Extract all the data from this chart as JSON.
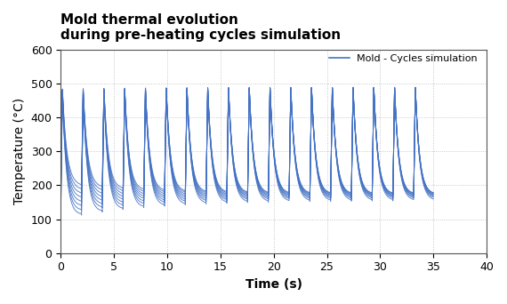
{
  "title_line1": "Mold thermal evolution",
  "title_line2": "during pre-heating cycles simulation",
  "xlabel": "Time (s)",
  "ylabel": "Temperature (°C)",
  "legend_label": "Mold - Cycles simulation",
  "xlim": [
    0,
    40
  ],
  "ylim": [
    0,
    600
  ],
  "xticks": [
    0,
    5,
    10,
    15,
    20,
    25,
    30,
    35,
    40
  ],
  "yticks": [
    0,
    100,
    200,
    300,
    400,
    500,
    600
  ],
  "line_color": "#4472C4",
  "background_color": "#ffffff",
  "cycle_period": 1.95,
  "num_lines": 8,
  "initial_temps": [
    100,
    115,
    130,
    145,
    160,
    175,
    190,
    205
  ],
  "steady_state_temps": [
    155,
    160,
    163,
    166,
    168,
    170,
    172,
    173
  ],
  "peak_temp_start": [
    467,
    470,
    473,
    476,
    479,
    481,
    483,
    485
  ],
  "peak_temp_steady": [
    487,
    488,
    489,
    489,
    490,
    490,
    490,
    490
  ],
  "title_fontsize": 11,
  "axis_label_fontsize": 10,
  "tick_fontsize": 9,
  "legend_fontsize": 8
}
